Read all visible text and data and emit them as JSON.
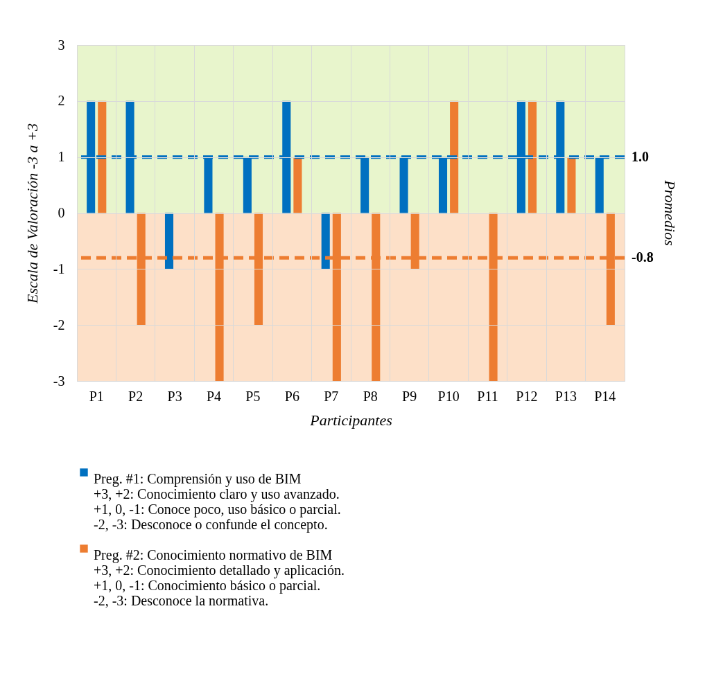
{
  "chart_data": {
    "type": "bar",
    "xlabel": "Participantes",
    "ylabel": "Escala de Valoración -3 a +3",
    "y2label": "Promedios",
    "categories": [
      "P1",
      "P2",
      "P3",
      "P4",
      "P5",
      "P6",
      "P7",
      "P8",
      "P9",
      "P10",
      "P11",
      "P12",
      "P13",
      "P14"
    ],
    "series": [
      {
        "name": "Preg. #1: Comprensión y uso de BIM\n+3, +2: Conocimiento claro y uso avanzado.\n+1, 0, -1: Conoce poco, uso básico o parcial.\n -2, -3: Desconoce o confunde el concepto.",
        "color": "#0070c0",
        "values": [
          2,
          2,
          -1,
          1,
          1,
          2,
          -1,
          1,
          1,
          1,
          0,
          2,
          2,
          1
        ]
      },
      {
        "name": "Preg. #2: Conocimiento normativo de BIM\n+3, +2: Conocimiento detallado y aplicación.\n+1, 0, -1: Conocimiento básico o parcial.\n-2, -3: Desconoce la normativa.",
        "color": "#ed7d31",
        "values": [
          2,
          -2,
          0,
          -3,
          -2,
          1,
          -3,
          -3,
          -1,
          2,
          -3,
          2,
          1,
          -2
        ]
      }
    ],
    "ylim": [
      -3,
      3
    ],
    "yticks": [
      -3,
      -2,
      -1,
      0,
      1,
      2,
      3
    ],
    "grid": true,
    "legend": "bottom",
    "ref_lines": [
      {
        "axis": "y",
        "value": 1.0,
        "label": "1.0",
        "color": "#0070c0",
        "line_style": "dashed"
      },
      {
        "axis": "y",
        "value": -0.8,
        "label": "-0.8",
        "color": "#ed7d31",
        "line_style": "dashed"
      }
    ],
    "bands": [
      {
        "axis": "y",
        "from": 0,
        "to": 3,
        "color": "#e8f5cc"
      },
      {
        "axis": "y",
        "from": -3,
        "to": 0,
        "color": "#fde0c8"
      }
    ]
  }
}
